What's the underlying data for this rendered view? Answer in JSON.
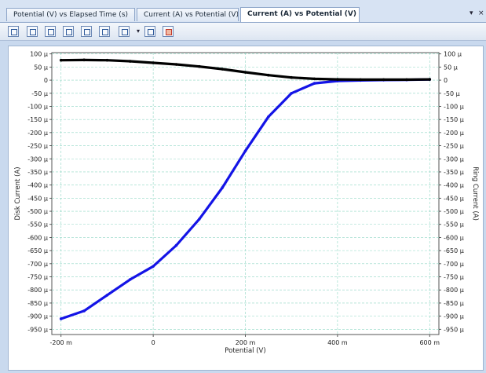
{
  "tabs": [
    {
      "label": "Potential (V) vs Elapsed Time (s)",
      "active": false
    },
    {
      "label": "Current (A) vs Potential (V)",
      "active": false
    },
    {
      "label": "Current (A) vs Potential (V) vs ...",
      "active": true
    }
  ],
  "tabbar_controls": {
    "dropdown": "▾",
    "close": "×"
  },
  "toolbar": {
    "icons": [
      "properties-icon",
      "auto-scale-icon",
      "scale-x-icon",
      "scale-y-icon",
      "zoom-in-icon",
      "zoom-out-icon",
      "copy-icon",
      "line-style-icon",
      "overlay-icon"
    ],
    "dropdown_glyph": "▾"
  },
  "colors": {
    "disk_series": "#1414e6",
    "ring_series": "#000000",
    "grid": "#8fd6c4"
  },
  "chart_data": {
    "type": "line",
    "xlabel": "Potential (V)",
    "ylabel_left": "Disk Current (A)",
    "ylabel_right": "Ring Current (A)",
    "xlim": [
      -0.22,
      0.62
    ],
    "ylim": [
      -0.00097,
      0.000105
    ],
    "grid": true,
    "x_ticks": [
      {
        "value": -0.2,
        "label": "-200 m"
      },
      {
        "value": 0,
        "label": "0"
      },
      {
        "value": 0.2,
        "label": "200 m"
      },
      {
        "value": 0.4,
        "label": "400 m"
      },
      {
        "value": 0.6,
        "label": "600 m"
      }
    ],
    "y_ticks": [
      {
        "value": 0.0001,
        "label": "100 µ"
      },
      {
        "value": 5e-05,
        "label": "50 µ"
      },
      {
        "value": 0,
        "label": "0"
      },
      {
        "value": -5e-05,
        "label": "-50 µ"
      },
      {
        "value": -0.0001,
        "label": "-100 µ"
      },
      {
        "value": -0.00015,
        "label": "-150 µ"
      },
      {
        "value": -0.0002,
        "label": "-200 µ"
      },
      {
        "value": -0.00025,
        "label": "-250 µ"
      },
      {
        "value": -0.0003,
        "label": "-300 µ"
      },
      {
        "value": -0.00035,
        "label": "-350 µ"
      },
      {
        "value": -0.0004,
        "label": "-400 µ"
      },
      {
        "value": -0.00045,
        "label": "-450 µ"
      },
      {
        "value": -0.0005,
        "label": "-500 µ"
      },
      {
        "value": -0.00055,
        "label": "-550 µ"
      },
      {
        "value": -0.0006,
        "label": "-600 µ"
      },
      {
        "value": -0.00065,
        "label": "-650 µ"
      },
      {
        "value": -0.0007,
        "label": "-700 µ"
      },
      {
        "value": -0.00075,
        "label": "-750 µ"
      },
      {
        "value": -0.0008,
        "label": "-800 µ"
      },
      {
        "value": -0.00085,
        "label": "-850 µ"
      },
      {
        "value": -0.0009,
        "label": "-900 µ"
      },
      {
        "value": -0.00095,
        "label": "-950 µ"
      }
    ],
    "series": [
      {
        "role": "disk",
        "color": "#1414e6",
        "x": [
          -0.2,
          -0.15,
          -0.1,
          -0.05,
          0.0,
          0.05,
          0.1,
          0.15,
          0.2,
          0.25,
          0.3,
          0.35,
          0.4,
          0.45,
          0.5,
          0.55,
          0.6
        ],
        "y": [
          -0.00091,
          -0.00088,
          -0.00082,
          -0.00076,
          -0.00071,
          -0.00063,
          -0.00053,
          -0.00041,
          -0.00027,
          -0.00014,
          -5e-05,
          -1.2e-05,
          -3e-06,
          -1e-06,
          5e-07,
          1e-06,
          3e-06
        ]
      },
      {
        "role": "ring",
        "color": "#000000",
        "x": [
          -0.2,
          -0.15,
          -0.1,
          -0.05,
          0.0,
          0.05,
          0.1,
          0.15,
          0.2,
          0.25,
          0.3,
          0.35,
          0.4,
          0.45,
          0.5,
          0.55,
          0.6
        ],
        "y": [
          7.6e-05,
          7.7e-05,
          7.6e-05,
          7.2e-05,
          6.6e-05,
          6e-05,
          5.2e-05,
          4.2e-05,
          3e-05,
          1.9e-05,
          1e-05,
          5e-06,
          3e-06,
          2e-06,
          2e-06,
          2e-06,
          3e-06
        ]
      }
    ]
  }
}
